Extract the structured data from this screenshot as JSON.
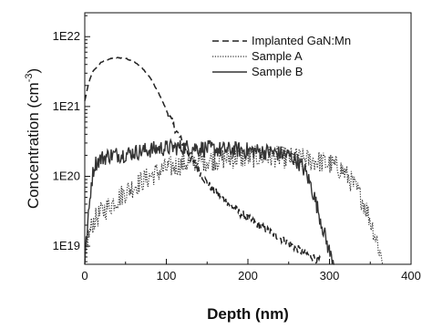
{
  "chart_data": {
    "type": "line",
    "title": "",
    "xlabel": "Depth (nm)",
    "ylabel_main": "Concentration (cm",
    "ylabel_exp": "-3",
    "ylabel_close": ")",
    "x_scale": "linear",
    "y_scale": "log",
    "xlim": [
      0,
      400
    ],
    "ylim": [
      5.5e+18,
      2.2e+22
    ],
    "x_ticks": [
      {
        "value": 0,
        "label": "0"
      },
      {
        "value": 100,
        "label": "100"
      },
      {
        "value": 200,
        "label": "200"
      },
      {
        "value": 300,
        "label": "300"
      },
      {
        "value": 400,
        "label": "400"
      }
    ],
    "y_ticks": [
      {
        "value": 1e+19,
        "label": "1E19"
      },
      {
        "value": 1e+20,
        "label": "1E20"
      },
      {
        "value": 1e+21,
        "label": "1E21"
      },
      {
        "value": 1e+22,
        "label": "1E22"
      }
    ],
    "legend_position": "top-right",
    "grid": false,
    "series": [
      {
        "name": "Implanted GaN:Mn",
        "style": "dashed",
        "color": "#222222",
        "points": [
          [
            0,
            1.2e+21
          ],
          [
            5,
            2.2e+21
          ],
          [
            10,
            3.2e+21
          ],
          [
            20,
            4.3e+21
          ],
          [
            30,
            4.8e+21
          ],
          [
            40,
            5e+21
          ],
          [
            50,
            4.9e+21
          ],
          [
            60,
            4.4e+21
          ],
          [
            70,
            3.6e+21
          ],
          [
            80,
            2.6e+21
          ],
          [
            90,
            1.6e+21
          ],
          [
            100,
            9e+20
          ],
          [
            110,
            5e+20
          ],
          [
            120,
            3e+20
          ],
          [
            130,
            1.8e+20
          ],
          [
            140,
            1.2e+20
          ],
          [
            150,
            8e+19
          ],
          [
            160,
            6e+19
          ],
          [
            175,
            4.2e+19
          ],
          [
            190,
            3e+19
          ],
          [
            205,
            2.3e+19
          ],
          [
            220,
            1.8e+19
          ],
          [
            235,
            1.4e+19
          ],
          [
            250,
            1.1e+19
          ],
          [
            265,
            8.5e+18
          ],
          [
            280,
            7e+18
          ],
          [
            290,
            6e+18
          ]
        ]
      },
      {
        "name": "Sample A",
        "style": "dotted",
        "color": "#333333",
        "points": [
          [
            0,
            6e+18
          ],
          [
            3,
            1.2e+19
          ],
          [
            10,
            2.2e+19
          ],
          [
            20,
            3e+19
          ],
          [
            30,
            3.8e+19
          ],
          [
            40,
            4.8e+19
          ],
          [
            50,
            6e+19
          ],
          [
            60,
            7.2e+19
          ],
          [
            70,
            8.5e+19
          ],
          [
            80,
            1e+20
          ],
          [
            90,
            1.15e+20
          ],
          [
            100,
            1.3e+20
          ],
          [
            110,
            1.4e+20
          ],
          [
            120,
            1.5e+20
          ],
          [
            130,
            1.6e+20
          ],
          [
            150,
            1.7e+20
          ],
          [
            170,
            1.8e+20
          ],
          [
            190,
            1.85e+20
          ],
          [
            210,
            1.9e+20
          ],
          [
            230,
            1.9e+20
          ],
          [
            250,
            1.85e+20
          ],
          [
            270,
            1.75e+20
          ],
          [
            290,
            1.6e+20
          ],
          [
            305,
            1.45e+20
          ],
          [
            315,
            1.25e+20
          ],
          [
            325,
            9e+19
          ],
          [
            335,
            6e+19
          ],
          [
            345,
            3.5e+19
          ],
          [
            352,
            2e+19
          ],
          [
            358,
            1.2e+19
          ],
          [
            362,
            8e+18
          ],
          [
            366,
            6e+18
          ]
        ]
      },
      {
        "name": "Sample B",
        "style": "solid",
        "color": "#333333",
        "points": [
          [
            0,
            6e+18
          ],
          [
            2,
            1.2e+19
          ],
          [
            5,
            3e+19
          ],
          [
            8,
            8e+19
          ],
          [
            12,
            1.5e+20
          ],
          [
            20,
            1.8e+20
          ],
          [
            30,
            2e+20
          ],
          [
            50,
            2.1e+20
          ],
          [
            70,
            2.3e+20
          ],
          [
            90,
            2.5e+20
          ],
          [
            110,
            2.6e+20
          ],
          [
            130,
            2.6e+20
          ],
          [
            150,
            2.5e+20
          ],
          [
            170,
            2.4e+20
          ],
          [
            190,
            2.4e+20
          ],
          [
            210,
            2.3e+20
          ],
          [
            230,
            2.2e+20
          ],
          [
            250,
            2e+20
          ],
          [
            260,
            1.7e+20
          ],
          [
            270,
            1.2e+20
          ],
          [
            278,
            7e+19
          ],
          [
            284,
            4e+19
          ],
          [
            290,
            2.2e+19
          ],
          [
            296,
            1.2e+19
          ],
          [
            302,
            7e+18
          ],
          [
            306,
            6e+18
          ]
        ]
      }
    ]
  }
}
